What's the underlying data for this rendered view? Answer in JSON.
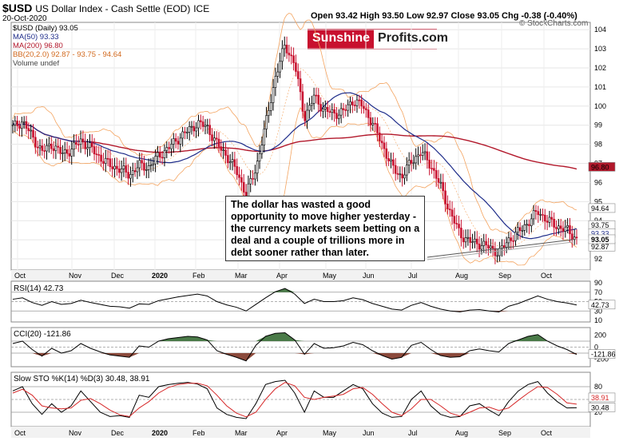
{
  "header": {
    "symbol": "$USD",
    "name": "US Dollar Index - Cash Settle (EOD)",
    "exchange": "ICE",
    "date": "20-Oct-2020",
    "ohlc": "Open 93.42  High 93.50  Low 92.97  Close 93.05  Chg -0.38 (-0.40%)",
    "watermark": "© StockCharts.com"
  },
  "logo": {
    "part1": "Sunshine",
    "part2": "Profits.com"
  },
  "legend": {
    "l1": "$USD (Daily) 93.05",
    "l2": "MA(50) 93.33",
    "l3": "MA(200) 96.80",
    "l4": "BB(20,2.0) 92.87 - 93.75 - 94.64",
    "l5": "Volume undef"
  },
  "annotation": {
    "text": "The dollar has wasted a good opportunity to move higher yesterday - the currency markets seem betting on a deal and a couple of trillions more in debt sooner rather than later."
  },
  "colors": {
    "up": "#000000",
    "down": "#c8102e",
    "ma50": "#1f2d8a",
    "ma200": "#b2182b",
    "bb": "#f4a460",
    "fill_green": "#4a7a48",
    "fill_red": "#8b4a3c"
  },
  "chart_data": [
    {
      "type": "candlestick",
      "title": "$USD US Dollar Index - Cash Settle (EOD)",
      "ylim": [
        91.5,
        104.3
      ],
      "yticks": [
        "92",
        "93",
        "94",
        "95",
        "96",
        "97",
        "98",
        "99",
        "100",
        "101",
        "102",
        "103",
        "104"
      ],
      "xticks": [
        "Oct",
        "Nov",
        "Dec",
        "2020",
        "Feb",
        "Mar",
        "Apr",
        "May",
        "Jun",
        "Jul",
        "Aug",
        "Sep",
        "Oct"
      ],
      "close_approx": [
        98.9,
        99.2,
        98.4,
        97.6,
        98.0,
        97.5,
        97.7,
        98.2,
        97.8,
        97.3,
        96.9,
        96.7,
        96.4,
        96.9,
        96.8,
        97.4,
        97.8,
        98.3,
        98.7,
        99.1,
        98.9,
        98.0,
        97.4,
        96.6,
        95.4,
        96.7,
        99.0,
        101.5,
        103.2,
        102.2,
        99.4,
        100.5,
        99.8,
        99.6,
        99.7,
        100.3,
        100.0,
        99.1,
        98.0,
        96.8,
        96.3,
        97.1,
        97.6,
        96.9,
        95.8,
        94.4,
        93.3,
        92.9,
        92.8,
        92.6,
        92.3,
        93.0,
        93.4,
        93.9,
        94.5,
        94.0,
        93.7,
        93.5,
        93.05
      ],
      "right_labels": [
        "96.80",
        "94.64",
        "93.75",
        "93.33",
        "92.87",
        "93.05"
      ]
    },
    {
      "type": "line",
      "title": "RSI(14) 42.73",
      "ylim": [
        10,
        90
      ],
      "yticks": [
        "90",
        "70",
        "50",
        "30",
        "10"
      ],
      "last_label": "42.73",
      "values": [
        55,
        58,
        48,
        42,
        50,
        44,
        46,
        53,
        48,
        44,
        40,
        39,
        36,
        45,
        44,
        52,
        56,
        60,
        63,
        66,
        62,
        50,
        43,
        38,
        30,
        44,
        58,
        71,
        78,
        66,
        46,
        55,
        50,
        50,
        52,
        58,
        54,
        46,
        40,
        34,
        32,
        42,
        48,
        40,
        34,
        30,
        28,
        32,
        33,
        30,
        28,
        40,
        46,
        54,
        62,
        55,
        50,
        47,
        42.73
      ]
    },
    {
      "type": "line",
      "title": "CCI(20) -121.86",
      "ylim": [
        -300,
        300
      ],
      "yticks": [
        "200",
        "0",
        "-200"
      ],
      "last_label": "-121.86",
      "values": [
        60,
        100,
        -40,
        -150,
        -20,
        -100,
        -60,
        60,
        -20,
        -80,
        -130,
        -150,
        -170,
        20,
        0,
        100,
        140,
        160,
        180,
        170,
        120,
        -60,
        -120,
        -170,
        -230,
        30,
        180,
        230,
        240,
        120,
        -120,
        60,
        -20,
        -10,
        20,
        80,
        40,
        -60,
        -140,
        -200,
        -170,
        30,
        80,
        -40,
        -140,
        -170,
        -160,
        -60,
        -30,
        -60,
        -80,
        60,
        120,
        180,
        210,
        100,
        20,
        -40,
        -121.86
      ]
    },
    {
      "type": "line",
      "title": "Slow STO %K(14) %D(3) 30.48, 38.91",
      "ylim": [
        -10,
        110
      ],
      "yticks": [
        "80",
        "50",
        "20"
      ],
      "series": [
        {
          "name": "%K(14)",
          "last_label": "30.48",
          "values": [
            70,
            80,
            40,
            15,
            40,
            20,
            35,
            70,
            45,
            20,
            10,
            12,
            8,
            60,
            55,
            80,
            85,
            88,
            90,
            86,
            75,
            30,
            15,
            8,
            5,
            40,
            85,
            92,
            95,
            65,
            20,
            70,
            55,
            55,
            70,
            85,
            75,
            40,
            18,
            8,
            10,
            50,
            70,
            35,
            15,
            8,
            10,
            35,
            40,
            25,
            12,
            45,
            70,
            85,
            92,
            65,
            45,
            30,
            30.48
          ]
        },
        {
          "name": "%D(3)",
          "last_label": "38.91",
          "values": [
            65,
            74,
            60,
            35,
            30,
            28,
            30,
            48,
            52,
            40,
            25,
            14,
            10,
            30,
            45,
            65,
            78,
            85,
            88,
            88,
            82,
            60,
            35,
            18,
            9,
            20,
            50,
            75,
            90,
            82,
            55,
            50,
            55,
            58,
            62,
            75,
            78,
            62,
            40,
            20,
            12,
            28,
            50,
            50,
            35,
            18,
            11,
            20,
            30,
            32,
            24,
            30,
            48,
            65,
            80,
            78,
            62,
            42,
            38.91
          ]
        }
      ]
    }
  ]
}
